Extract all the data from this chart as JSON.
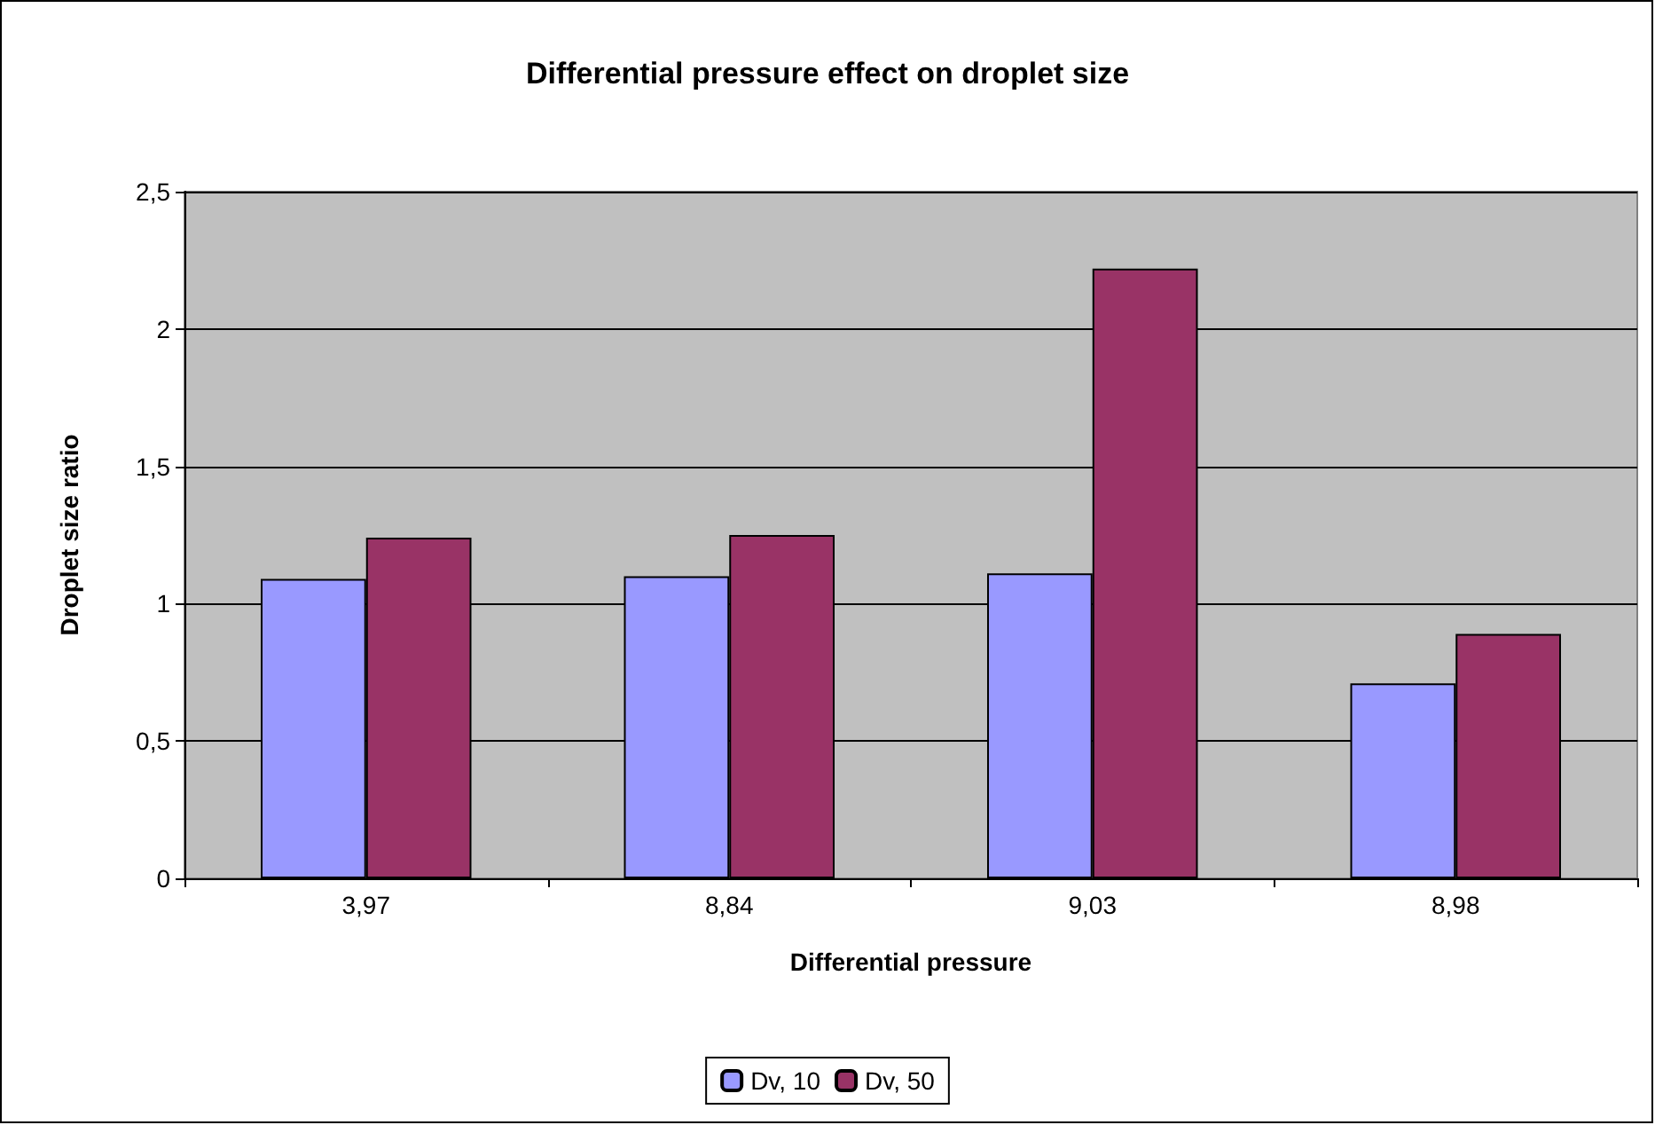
{
  "chart_data": {
    "type": "bar",
    "title": "Differential pressure effect on droplet size",
    "xlabel": "Differential pressure",
    "ylabel": "Droplet size ratio",
    "categories": [
      "3,97",
      "8,84",
      "9,03",
      "8,98"
    ],
    "series": [
      {
        "name": "Dv, 10",
        "color": "#9999ff",
        "values": [
          1.09,
          1.1,
          1.11,
          0.71
        ]
      },
      {
        "name": "Dv, 50",
        "color": "#993366",
        "values": [
          1.24,
          1.25,
          2.22,
          0.89
        ]
      }
    ],
    "ylim": [
      0,
      2.5
    ],
    "yticks": [
      0,
      {
        "value": 0.5,
        "label": "0,5"
      },
      1,
      {
        "value": 1.5,
        "label": "1,5"
      },
      2,
      {
        "value": 2.5,
        "label": "2,5"
      }
    ],
    "grid": "y",
    "legend": "bottom"
  }
}
